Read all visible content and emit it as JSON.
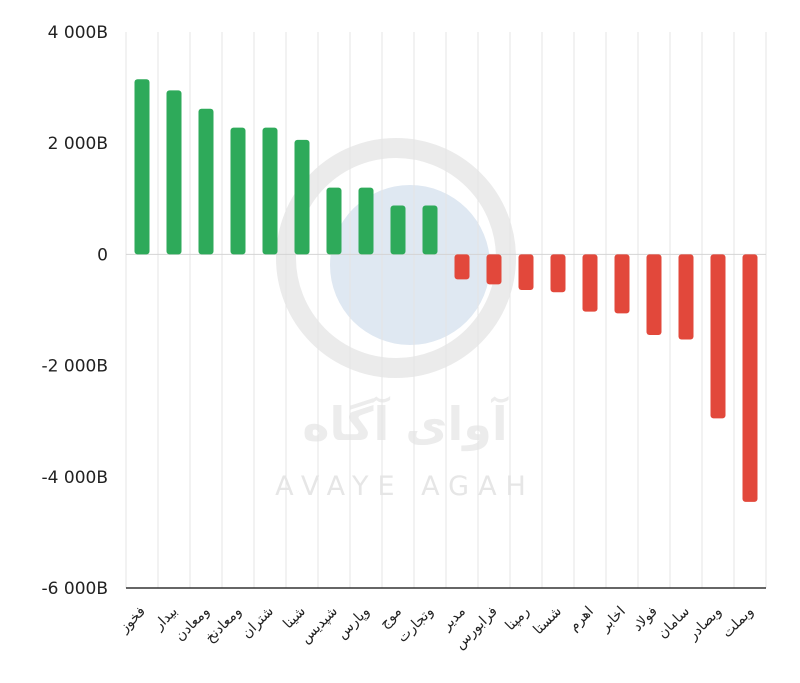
{
  "watermark": {
    "text_fa": "آوای آگاه",
    "text_en": "AVAYE AGAH"
  },
  "chart_data": {
    "type": "bar",
    "title": "",
    "xlabel": "",
    "ylabel": "",
    "ylim": [
      -6000,
      4000
    ],
    "yticks": [
      4000,
      2000,
      0,
      -2000,
      -4000,
      -6000
    ],
    "ytick_labels": [
      "4 000B",
      "2 000B",
      "0",
      "-2 000B",
      "-4 000B",
      "-6 000B"
    ],
    "grid": "vertical",
    "categories": [
      "فخوز",
      "بیدار",
      "ومعادن",
      "ومعادنخ",
      "شتران",
      "شینا",
      "شپدیس",
      "وپارس",
      "موج",
      "وتجارت",
      "مدیر",
      "فرابورس",
      "رمپنا",
      "شستا",
      "اهرم",
      "اخابر",
      "فولاد",
      "سامان",
      "وبصادر",
      "وبملت"
    ],
    "values": [
      3150,
      2950,
      2620,
      2280,
      2280,
      2060,
      1200,
      1200,
      880,
      880,
      -450,
      -540,
      -640,
      -680,
      -1030,
      -1060,
      -1450,
      -1530,
      -2950,
      -4450
    ],
    "colors": {
      "positive": "#2eaa5a",
      "negative": "#e2483b"
    }
  }
}
